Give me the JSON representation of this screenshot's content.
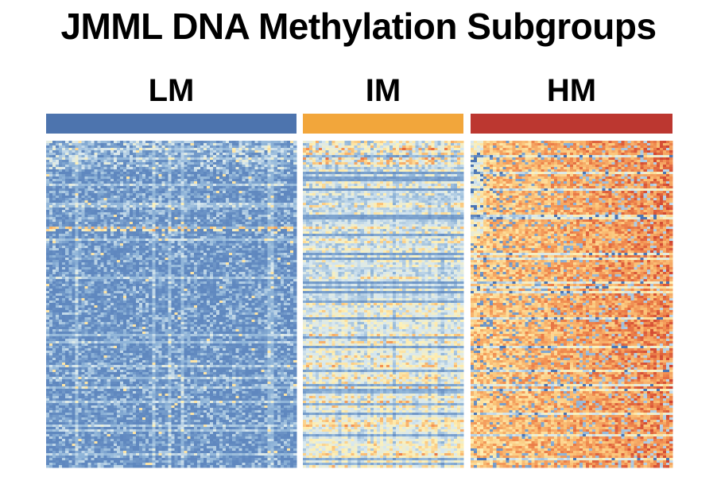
{
  "chart_data": {
    "type": "heatmap",
    "title": "JMML DNA Methylation Subgroups",
    "xlabel": "",
    "ylabel": "",
    "value_range": [
      0,
      1
    ],
    "colorscale": [
      "#4a74b4",
      "#8fb4d8",
      "#d8e8ef",
      "#fdf1b8",
      "#fbc77c",
      "#f08a4e",
      "#cf3f2e"
    ],
    "groups": [
      {
        "name": "LM",
        "color": "#4d74ae",
        "columns": 78,
        "mean_methylation": 0.12
      },
      {
        "name": "IM",
        "color": "#f2a63b",
        "columns": 50,
        "mean_methylation": 0.45
      },
      {
        "name": "HM",
        "color": "#bc3730",
        "columns": 63,
        "mean_methylation": 0.72
      }
    ],
    "rows": 137
  }
}
